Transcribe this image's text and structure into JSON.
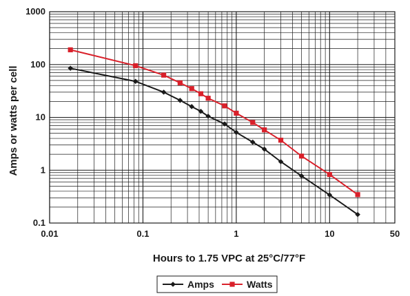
{
  "chart_data": {
    "type": "line",
    "x_scale": "log",
    "y_scale": "log",
    "xlabel": "Hours to 1.75 VPC at 25°C/77°F",
    "ylabel": "Amps or watts per cell",
    "xlim": [
      0.01,
      50
    ],
    "ylim": [
      0.1,
      1000
    ],
    "x_ticks": [
      {
        "value": 0.01,
        "label": "0.01"
      },
      {
        "value": 0.1,
        "label": "0.1"
      },
      {
        "value": 1,
        "label": "1"
      },
      {
        "value": 10,
        "label": "10"
      },
      {
        "value": 50,
        "label": "50"
      }
    ],
    "y_ticks": [
      {
        "value": 1000,
        "label": "1000"
      },
      {
        "value": 100,
        "label": "100"
      },
      {
        "value": 10,
        "label": "10"
      },
      {
        "value": 1,
        "label": "1"
      },
      {
        "value": 0.1,
        "label": "0.1"
      }
    ],
    "grid": true,
    "legend_position": "bottom-center",
    "series": [
      {
        "name": "Amps",
        "color": "#1a1a1a",
        "marker": "diamond",
        "points": [
          {
            "x": 0.0167,
            "y": 85
          },
          {
            "x": 0.0833,
            "y": 48
          },
          {
            "x": 0.167,
            "y": 30
          },
          {
            "x": 0.25,
            "y": 21
          },
          {
            "x": 0.333,
            "y": 16
          },
          {
            "x": 0.417,
            "y": 13
          },
          {
            "x": 0.5,
            "y": 10.5
          },
          {
            "x": 0.75,
            "y": 7.5
          },
          {
            "x": 1,
            "y": 5.2
          },
          {
            "x": 1.5,
            "y": 3.4
          },
          {
            "x": 2,
            "y": 2.5
          },
          {
            "x": 3,
            "y": 1.45
          },
          {
            "x": 5,
            "y": 0.78
          },
          {
            "x": 10,
            "y": 0.34
          },
          {
            "x": 20,
            "y": 0.145
          }
        ]
      },
      {
        "name": "Watts",
        "color": "#d9202a",
        "marker": "square",
        "points": [
          {
            "x": 0.0167,
            "y": 190
          },
          {
            "x": 0.0833,
            "y": 95
          },
          {
            "x": 0.167,
            "y": 63
          },
          {
            "x": 0.25,
            "y": 45
          },
          {
            "x": 0.333,
            "y": 35
          },
          {
            "x": 0.417,
            "y": 28
          },
          {
            "x": 0.5,
            "y": 23
          },
          {
            "x": 0.75,
            "y": 16.5
          },
          {
            "x": 1,
            "y": 12
          },
          {
            "x": 1.5,
            "y": 8
          },
          {
            "x": 2,
            "y": 5.8
          },
          {
            "x": 3,
            "y": 3.7
          },
          {
            "x": 5,
            "y": 1.85
          },
          {
            "x": 10,
            "y": 0.83
          },
          {
            "x": 20,
            "y": 0.345
          }
        ]
      }
    ]
  }
}
